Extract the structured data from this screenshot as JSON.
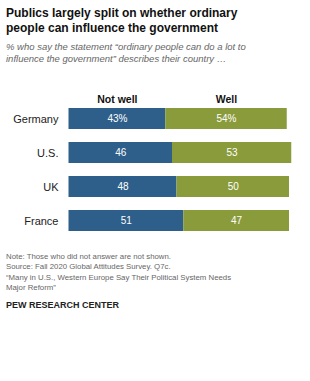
{
  "chart_data": {
    "type": "bar",
    "orientation": "horizontal",
    "stacked": true,
    "title": "Publics largely split on whether ordinary\npeople can influence the government",
    "subtitle": "% who say the statement “ordinary people can do a lot to\ninfluence the government” describes their country …",
    "categories": [
      "Germany",
      "U.S.",
      "UK",
      "France"
    ],
    "series": [
      {
        "name": "Not well",
        "color": "#2e5f8a",
        "values": [
          43,
          46,
          48,
          51
        ],
        "value_labels": [
          "43%",
          "46",
          "48",
          "51"
        ]
      },
      {
        "name": "Well",
        "color": "#8a9b3c",
        "values": [
          54,
          53,
          50,
          47
        ],
        "value_labels": [
          "54%",
          "53",
          "50",
          "47"
        ]
      }
    ],
    "xlim": [
      -2,
      102
    ],
    "data_labels": true,
    "tick_labels": "y",
    "grid": false,
    "note": "Note: Those who did not answer are not shown.\nSource: Fall 2020 Global Attitudes Survey. Q7c.\n“Many in U.S., Western Europe Say Their Political System Needs\nMajor Reform”",
    "footer": "PEW RESEARCH CENTER"
  }
}
